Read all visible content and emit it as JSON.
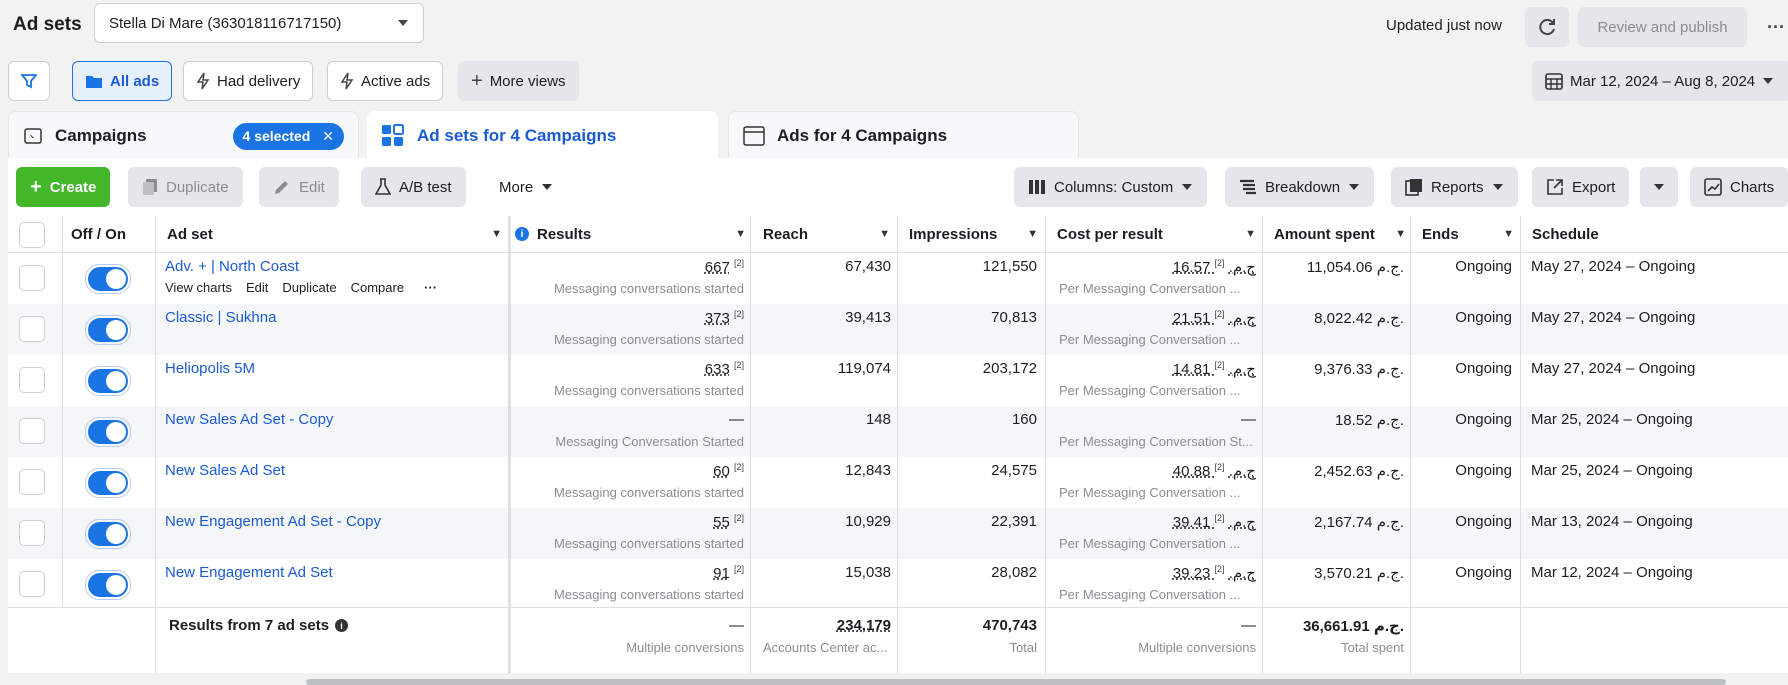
{
  "header": {
    "title": "Ad sets",
    "account": "Stella Di Mare (363018116717150)",
    "updated": "Updated just now",
    "review_publish": "Review and publish"
  },
  "views": {
    "all_ads": "All ads",
    "had_delivery": "Had delivery",
    "active_ads": "Active ads",
    "more_views": "More views",
    "date_range": "Mar 12, 2024 – Aug 8, 2024"
  },
  "tabs": {
    "campaigns": "Campaigns",
    "selected": "4 selected",
    "adsets": "Ad sets for 4 Campaigns",
    "ads": "Ads for 4 Campaigns"
  },
  "toolbar": {
    "create": "Create",
    "duplicate": "Duplicate",
    "edit": "Edit",
    "abtest": "A/B test",
    "more": "More",
    "columns": "Columns: Custom",
    "breakdown": "Breakdown",
    "reports": "Reports",
    "export": "Export",
    "charts": "Charts"
  },
  "columns": {
    "offon": "Off / On",
    "adset": "Ad set",
    "results": "Results",
    "reach": "Reach",
    "impressions": "Impressions",
    "cost": "Cost per result",
    "amount": "Amount spent",
    "ends": "Ends",
    "schedule": "Schedule"
  },
  "row_actions": {
    "view_charts": "View charts",
    "edit": "Edit",
    "duplicate": "Duplicate",
    "compare": "Compare"
  },
  "footnote": "[2]",
  "rows": [
    {
      "name": "Adv. + | North Coast",
      "results": "667",
      "results_sub": "Messaging conversations started",
      "reach": "67,430",
      "impressions": "121,550",
      "cost": "16.57 ج.م.",
      "cost_sub": "Per Messaging Conversation ...",
      "amount": "11,054.06 ج.م.",
      "ends": "Ongoing",
      "schedule": "May 27, 2024 – Ongoing"
    },
    {
      "name": "Classic | Sukhna",
      "results": "373",
      "results_sub": "Messaging conversations started",
      "reach": "39,413",
      "impressions": "70,813",
      "cost": "21.51 ج.م.",
      "cost_sub": "Per Messaging Conversation ...",
      "amount": "8,022.42 ج.م.",
      "ends": "Ongoing",
      "schedule": "May 27, 2024 – Ongoing"
    },
    {
      "name": "Heliopolis 5M",
      "results": "633",
      "results_sub": "Messaging conversations started",
      "reach": "119,074",
      "impressions": "203,172",
      "cost": "14.81 ج.م.",
      "cost_sub": "Per Messaging Conversation ...",
      "amount": "9,376.33 ج.م.",
      "ends": "Ongoing",
      "schedule": "May 27, 2024 – Ongoing"
    },
    {
      "name": "New Sales Ad Set - Copy",
      "results": "—",
      "results_sub": "Messaging Conversation Started",
      "reach": "148",
      "impressions": "160",
      "cost": "—",
      "cost_sub": "Per Messaging Conversation St...",
      "amount": "18.52 ج.م.",
      "ends": "Ongoing",
      "schedule": "Mar 25, 2024 – Ongoing"
    },
    {
      "name": "New Sales Ad Set",
      "results": "60",
      "results_sub": "Messaging conversations started",
      "reach": "12,843",
      "impressions": "24,575",
      "cost": "40.88 ج.م.",
      "cost_sub": "Per Messaging Conversation ...",
      "amount": "2,452.63 ج.م.",
      "ends": "Ongoing",
      "schedule": "Mar 25, 2024 – Ongoing"
    },
    {
      "name": "New Engagement Ad Set - Copy",
      "results": "55",
      "results_sub": "Messaging conversations started",
      "reach": "10,929",
      "impressions": "22,391",
      "cost": "39.41 ج.م.",
      "cost_sub": "Per Messaging Conversation ...",
      "amount": "2,167.74 ج.م.",
      "ends": "Ongoing",
      "schedule": "Mar 13, 2024 – Ongoing"
    },
    {
      "name": "New Engagement Ad Set",
      "results": "91",
      "results_sub": "Messaging conversations started",
      "reach": "15,038",
      "impressions": "28,082",
      "cost": "39.23 ج.م.",
      "cost_sub": "Per Messaging Conversation ...",
      "amount": "3,570.21 ج.م.",
      "ends": "Ongoing",
      "schedule": "Mar 12, 2024 – Ongoing"
    }
  ],
  "totals": {
    "label": "Results from 7 ad sets",
    "results": "—",
    "results_sub": "Multiple conversions",
    "reach": "234,179",
    "reach_sub": "Accounts Center ac...",
    "impressions": "470,743",
    "impressions_sub": "Total",
    "cost": "—",
    "cost_sub": "Multiple conversions",
    "amount": "36,661.91 ج.م.",
    "amount_sub": "Total spent"
  }
}
